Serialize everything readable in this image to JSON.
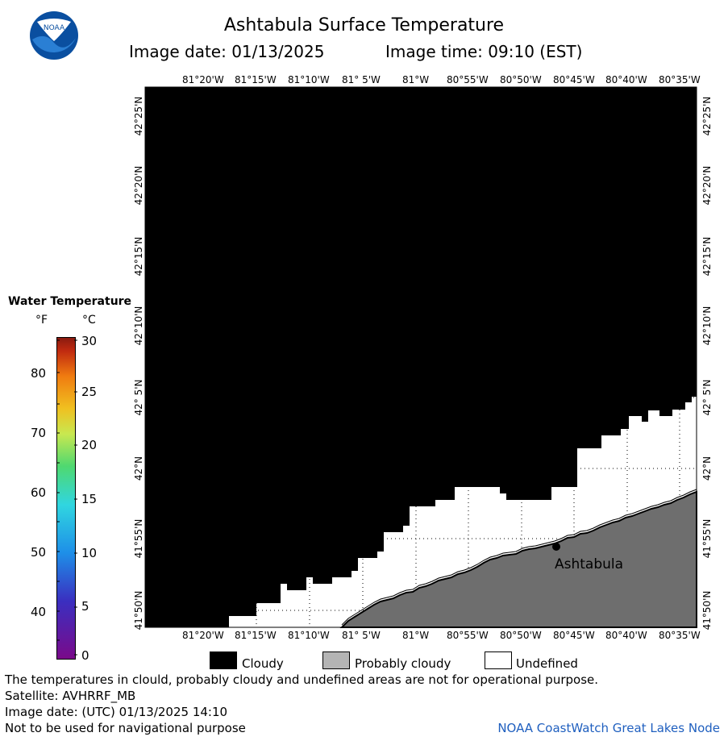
{
  "title": "Ashtabula Surface Temperature",
  "image_date_label": "Image date: 01/13/2025",
  "image_time_label": "Image time: 09:10 (EST)",
  "logo_text": "NOAA",
  "longitude_ticks": [
    "81°20'W",
    "81°15'W",
    "81°10'W",
    "81° 5'W",
    "81°W",
    "80°55'W",
    "80°50'W",
    "80°45'W",
    "80°40'W",
    "80°35'W"
  ],
  "latitude_ticks": [
    "42°25'N",
    "42°20'N",
    "42°15'N",
    "42°10'N",
    "42° 5'N",
    "42°N",
    "41°55'N",
    "41°50'N"
  ],
  "colorbar": {
    "title": "Water Temperature",
    "unit_f": "°F",
    "unit_c": "°C",
    "f_values": [
      "80",
      "70",
      "60",
      "50",
      "40"
    ],
    "c_values": [
      "30",
      "25",
      "20",
      "15",
      "10",
      "5",
      "0"
    ]
  },
  "city_label": "Ashtabula",
  "legend": [
    {
      "label": "Cloudy",
      "color": "#000000"
    },
    {
      "label": "Probably cloudy",
      "color": "#b4b4b4"
    },
    {
      "label": "Undefined",
      "color": "#ffffff"
    }
  ],
  "footer": {
    "note": "The temperatures in clould, probably cloudy and undefined areas are not for operational purpose.",
    "satellite": "Satellite: AVHRRF_MB",
    "utc_date": "Image date: (UTC) 01/13/2025  14:10",
    "navigation": "Not to be used for navigational purpose",
    "credit": "NOAA CoastWatch Great Lakes Node"
  },
  "colors": {
    "cloud": "#000000",
    "land": "#6e6e6e",
    "undefined": "#ffffff"
  }
}
